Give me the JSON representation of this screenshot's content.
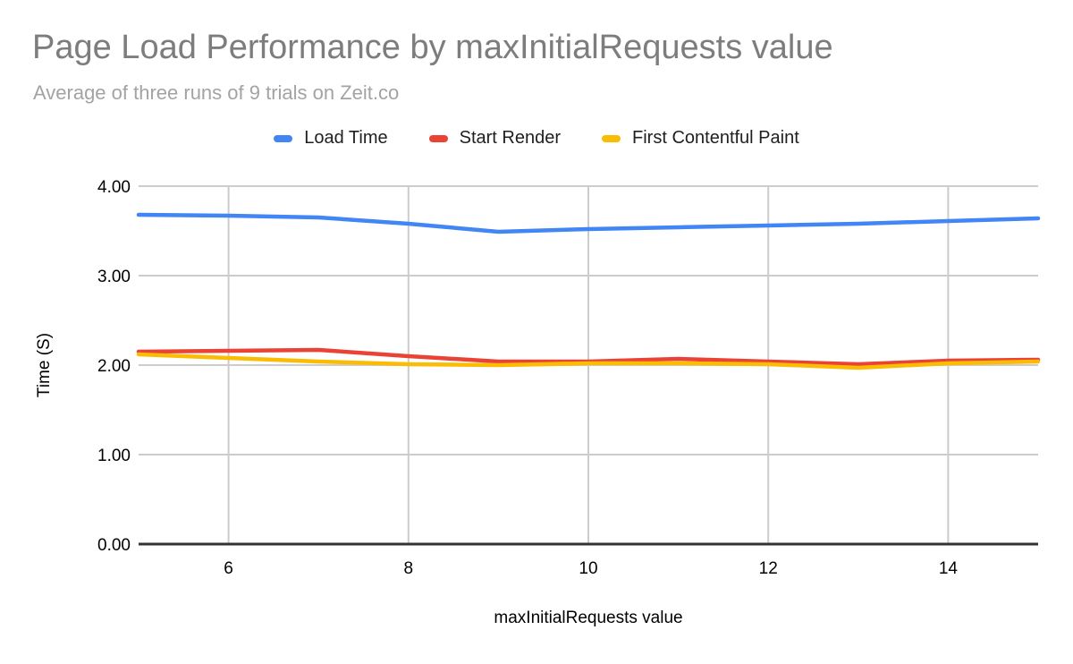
{
  "chart_data": {
    "type": "line",
    "title": "Page Load Performance by maxInitialRequests value",
    "subtitle": "Average of three runs of 9 trials on Zeit.co",
    "xlabel": "maxInitialRequests value",
    "ylabel": "Time (S)",
    "x": [
      5,
      6,
      7,
      8,
      9,
      10,
      11,
      12,
      13,
      14,
      15
    ],
    "series": [
      {
        "name": "Load Time",
        "color": "#4285F4",
        "values": [
          3.68,
          3.67,
          3.65,
          3.58,
          3.49,
          3.52,
          3.54,
          3.56,
          3.58,
          3.61,
          3.64
        ]
      },
      {
        "name": "Start Render",
        "color": "#EA4335",
        "values": [
          2.15,
          2.16,
          2.17,
          2.1,
          2.04,
          2.04,
          2.07,
          2.04,
          2.01,
          2.05,
          2.06
        ]
      },
      {
        "name": "First Contentful Paint",
        "color": "#FBBC04",
        "values": [
          2.12,
          2.08,
          2.04,
          2.01,
          2.0,
          2.02,
          2.02,
          2.01,
          1.97,
          2.02,
          2.04
        ]
      }
    ],
    "xlim": [
      5,
      15
    ],
    "ylim": [
      0,
      4
    ],
    "xticks": {
      "values": [
        6,
        8,
        10,
        12,
        14
      ],
      "labels": [
        "6",
        "8",
        "10",
        "12",
        "14"
      ]
    },
    "yticks": {
      "values": [
        0,
        1,
        2,
        3,
        4
      ],
      "labels": [
        "0.00",
        "1.00",
        "2.00",
        "3.00",
        "4.00"
      ]
    },
    "grid": true,
    "legend_position": "top",
    "colors": {
      "title": "#7d7d7d",
      "subtitle": "#a3a3a3",
      "grid": "#cccccc",
      "axis": "#333333",
      "tick_text": "#000000",
      "legend_text": "#1f1f1f",
      "background": "#ffffff"
    }
  }
}
